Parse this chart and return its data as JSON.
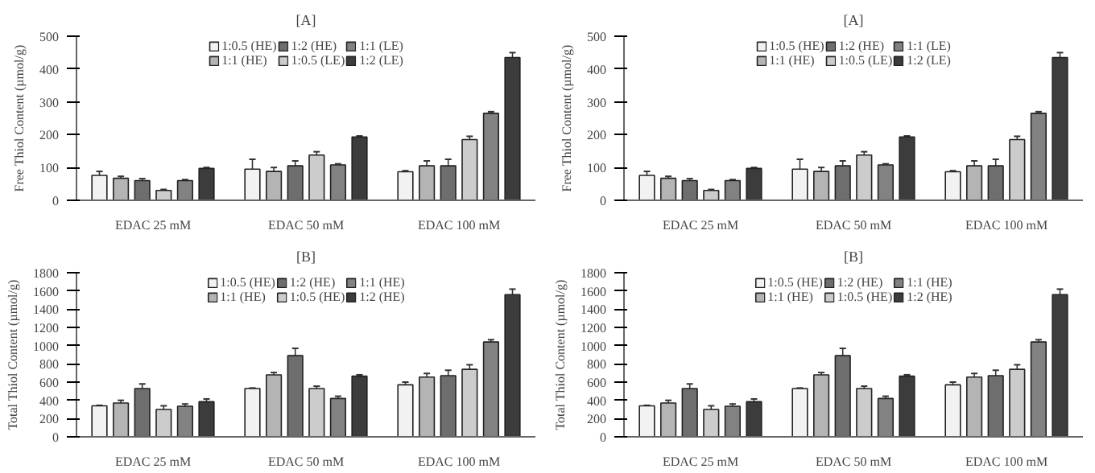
{
  "chart_data": [
    {
      "type": "bar",
      "title": "[A]",
      "ylabel": "Free Thiol Content (µmol/g)",
      "categories": [
        "EDAC 25 mM",
        "EDAC 50 mM",
        "EDAC 100 mM"
      ],
      "ylim": [
        0,
        500
      ],
      "yticks": [
        0,
        100,
        200,
        300,
        400,
        500
      ],
      "legend": "top",
      "grid": false,
      "series": [
        {
          "name": "1:0.5 (HE)",
          "color": "#f2f2f2",
          "values": [
            76,
            95,
            87
          ],
          "errors": [
            12,
            30,
            3
          ]
        },
        {
          "name": "1:1 (HE)",
          "color": "#b4b4b4",
          "values": [
            67,
            88,
            105
          ],
          "errors": [
            6,
            12,
            15
          ]
        },
        {
          "name": "1:2 (HE)",
          "color": "#6e6e6e",
          "values": [
            60,
            105,
            105
          ],
          "errors": [
            6,
            15,
            20
          ]
        },
        {
          "name": "1:0.5 (LE)",
          "color": "#cccccc",
          "values": [
            30,
            138,
            185
          ],
          "errors": [
            3,
            10,
            10
          ]
        },
        {
          "name": "1:1 (LE)",
          "color": "#828282",
          "values": [
            60,
            108,
            265
          ],
          "errors": [
            3,
            3,
            5
          ]
        },
        {
          "name": "1:2 (LE)",
          "color": "#3c3c3c",
          "values": [
            97,
            193,
            435
          ],
          "errors": [
            3,
            3,
            15
          ]
        }
      ]
    },
    {
      "type": "bar",
      "title": "[A]",
      "ylabel": "Free Thiol Content (µmol/g)",
      "categories": [
        "EDAC 25 mM",
        "EDAC 50 mM",
        "EDAC 100 mM"
      ],
      "ylim": [
        0,
        500
      ],
      "yticks": [
        0,
        100,
        200,
        300,
        400,
        500
      ],
      "legend": "top",
      "grid": false,
      "series": [
        {
          "name": "1:0.5 (HE)",
          "color": "#f2f2f2",
          "values": [
            76,
            95,
            87
          ],
          "errors": [
            12,
            30,
            3
          ]
        },
        {
          "name": "1:1 (HE)",
          "color": "#b4b4b4",
          "values": [
            67,
            88,
            105
          ],
          "errors": [
            6,
            12,
            15
          ]
        },
        {
          "name": "1:2 (HE)",
          "color": "#6e6e6e",
          "values": [
            60,
            105,
            105
          ],
          "errors": [
            6,
            15,
            20
          ]
        },
        {
          "name": "1:0.5 (LE)",
          "color": "#cccccc",
          "values": [
            30,
            138,
            185
          ],
          "errors": [
            3,
            10,
            10
          ]
        },
        {
          "name": "1:1 (LE)",
          "color": "#828282",
          "values": [
            60,
            108,
            265
          ],
          "errors": [
            3,
            3,
            5
          ]
        },
        {
          "name": "1:2 (LE)",
          "color": "#3c3c3c",
          "values": [
            97,
            193,
            435
          ],
          "errors": [
            3,
            3,
            15
          ]
        }
      ]
    },
    {
      "type": "bar",
      "title": "[B]",
      "ylabel": "Total Thiol Content (µmol/g)",
      "categories": [
        "EDAC 25 mM",
        "EDAC 50 mM",
        "EDAC 100 mM"
      ],
      "ylim": [
        0,
        1800
      ],
      "yticks": [
        0,
        200,
        400,
        600,
        800,
        1000,
        1200,
        1400,
        1600,
        1800
      ],
      "legend": "top",
      "grid": false,
      "series": [
        {
          "name": "1:0.5 (HE)",
          "color": "#f2f2f2",
          "values": [
            340,
            530,
            570
          ],
          "errors": [
            5,
            5,
            30
          ]
        },
        {
          "name": "1:1 (HE)",
          "color": "#b4b4b4",
          "values": [
            370,
            680,
            655
          ],
          "errors": [
            30,
            25,
            40
          ]
        },
        {
          "name": "1:2 (HE)",
          "color": "#6e6e6e",
          "values": [
            530,
            890,
            670
          ],
          "errors": [
            50,
            80,
            60
          ]
        },
        {
          "name": "1:0.5 (HE)",
          "color": "#cccccc",
          "values": [
            300,
            530,
            740
          ],
          "errors": [
            40,
            25,
            50
          ]
        },
        {
          "name": "1:1 (HE)",
          "color": "#828282",
          "values": [
            335,
            420,
            1040
          ],
          "errors": [
            25,
            25,
            25
          ]
        },
        {
          "name": "1:2 (HE)",
          "color": "#3c3c3c",
          "values": [
            385,
            665,
            1560
          ],
          "errors": [
            30,
            15,
            60
          ]
        }
      ]
    },
    {
      "type": "bar",
      "title": "[B]",
      "ylabel": "Total Thiol Content (µmol/g)",
      "categories": [
        "EDAC 25 mM",
        "EDAC 50 mM",
        "EDAC 100 mM"
      ],
      "ylim": [
        0,
        1800
      ],
      "yticks": [
        0,
        200,
        400,
        600,
        800,
        1000,
        1200,
        1400,
        1600,
        1800
      ],
      "legend": "top",
      "grid": false,
      "series": [
        {
          "name": "1:0.5 (HE)",
          "color": "#f2f2f2",
          "values": [
            340,
            530,
            570
          ],
          "errors": [
            5,
            5,
            30
          ]
        },
        {
          "name": "1:1 (HE)",
          "color": "#b4b4b4",
          "values": [
            370,
            680,
            655
          ],
          "errors": [
            30,
            25,
            40
          ]
        },
        {
          "name": "1:2 (HE)",
          "color": "#6e6e6e",
          "values": [
            530,
            890,
            670
          ],
          "errors": [
            50,
            80,
            60
          ]
        },
        {
          "name": "1:0.5 (HE)",
          "color": "#cccccc",
          "values": [
            300,
            530,
            740
          ],
          "errors": [
            40,
            25,
            50
          ]
        },
        {
          "name": "1:1 (HE)",
          "color": "#828282",
          "values": [
            335,
            420,
            1040
          ],
          "errors": [
            25,
            25,
            25
          ]
        },
        {
          "name": "1:2 (HE)",
          "color": "#3c3c3c",
          "values": [
            385,
            665,
            1560
          ],
          "errors": [
            30,
            15,
            60
          ]
        }
      ]
    }
  ]
}
